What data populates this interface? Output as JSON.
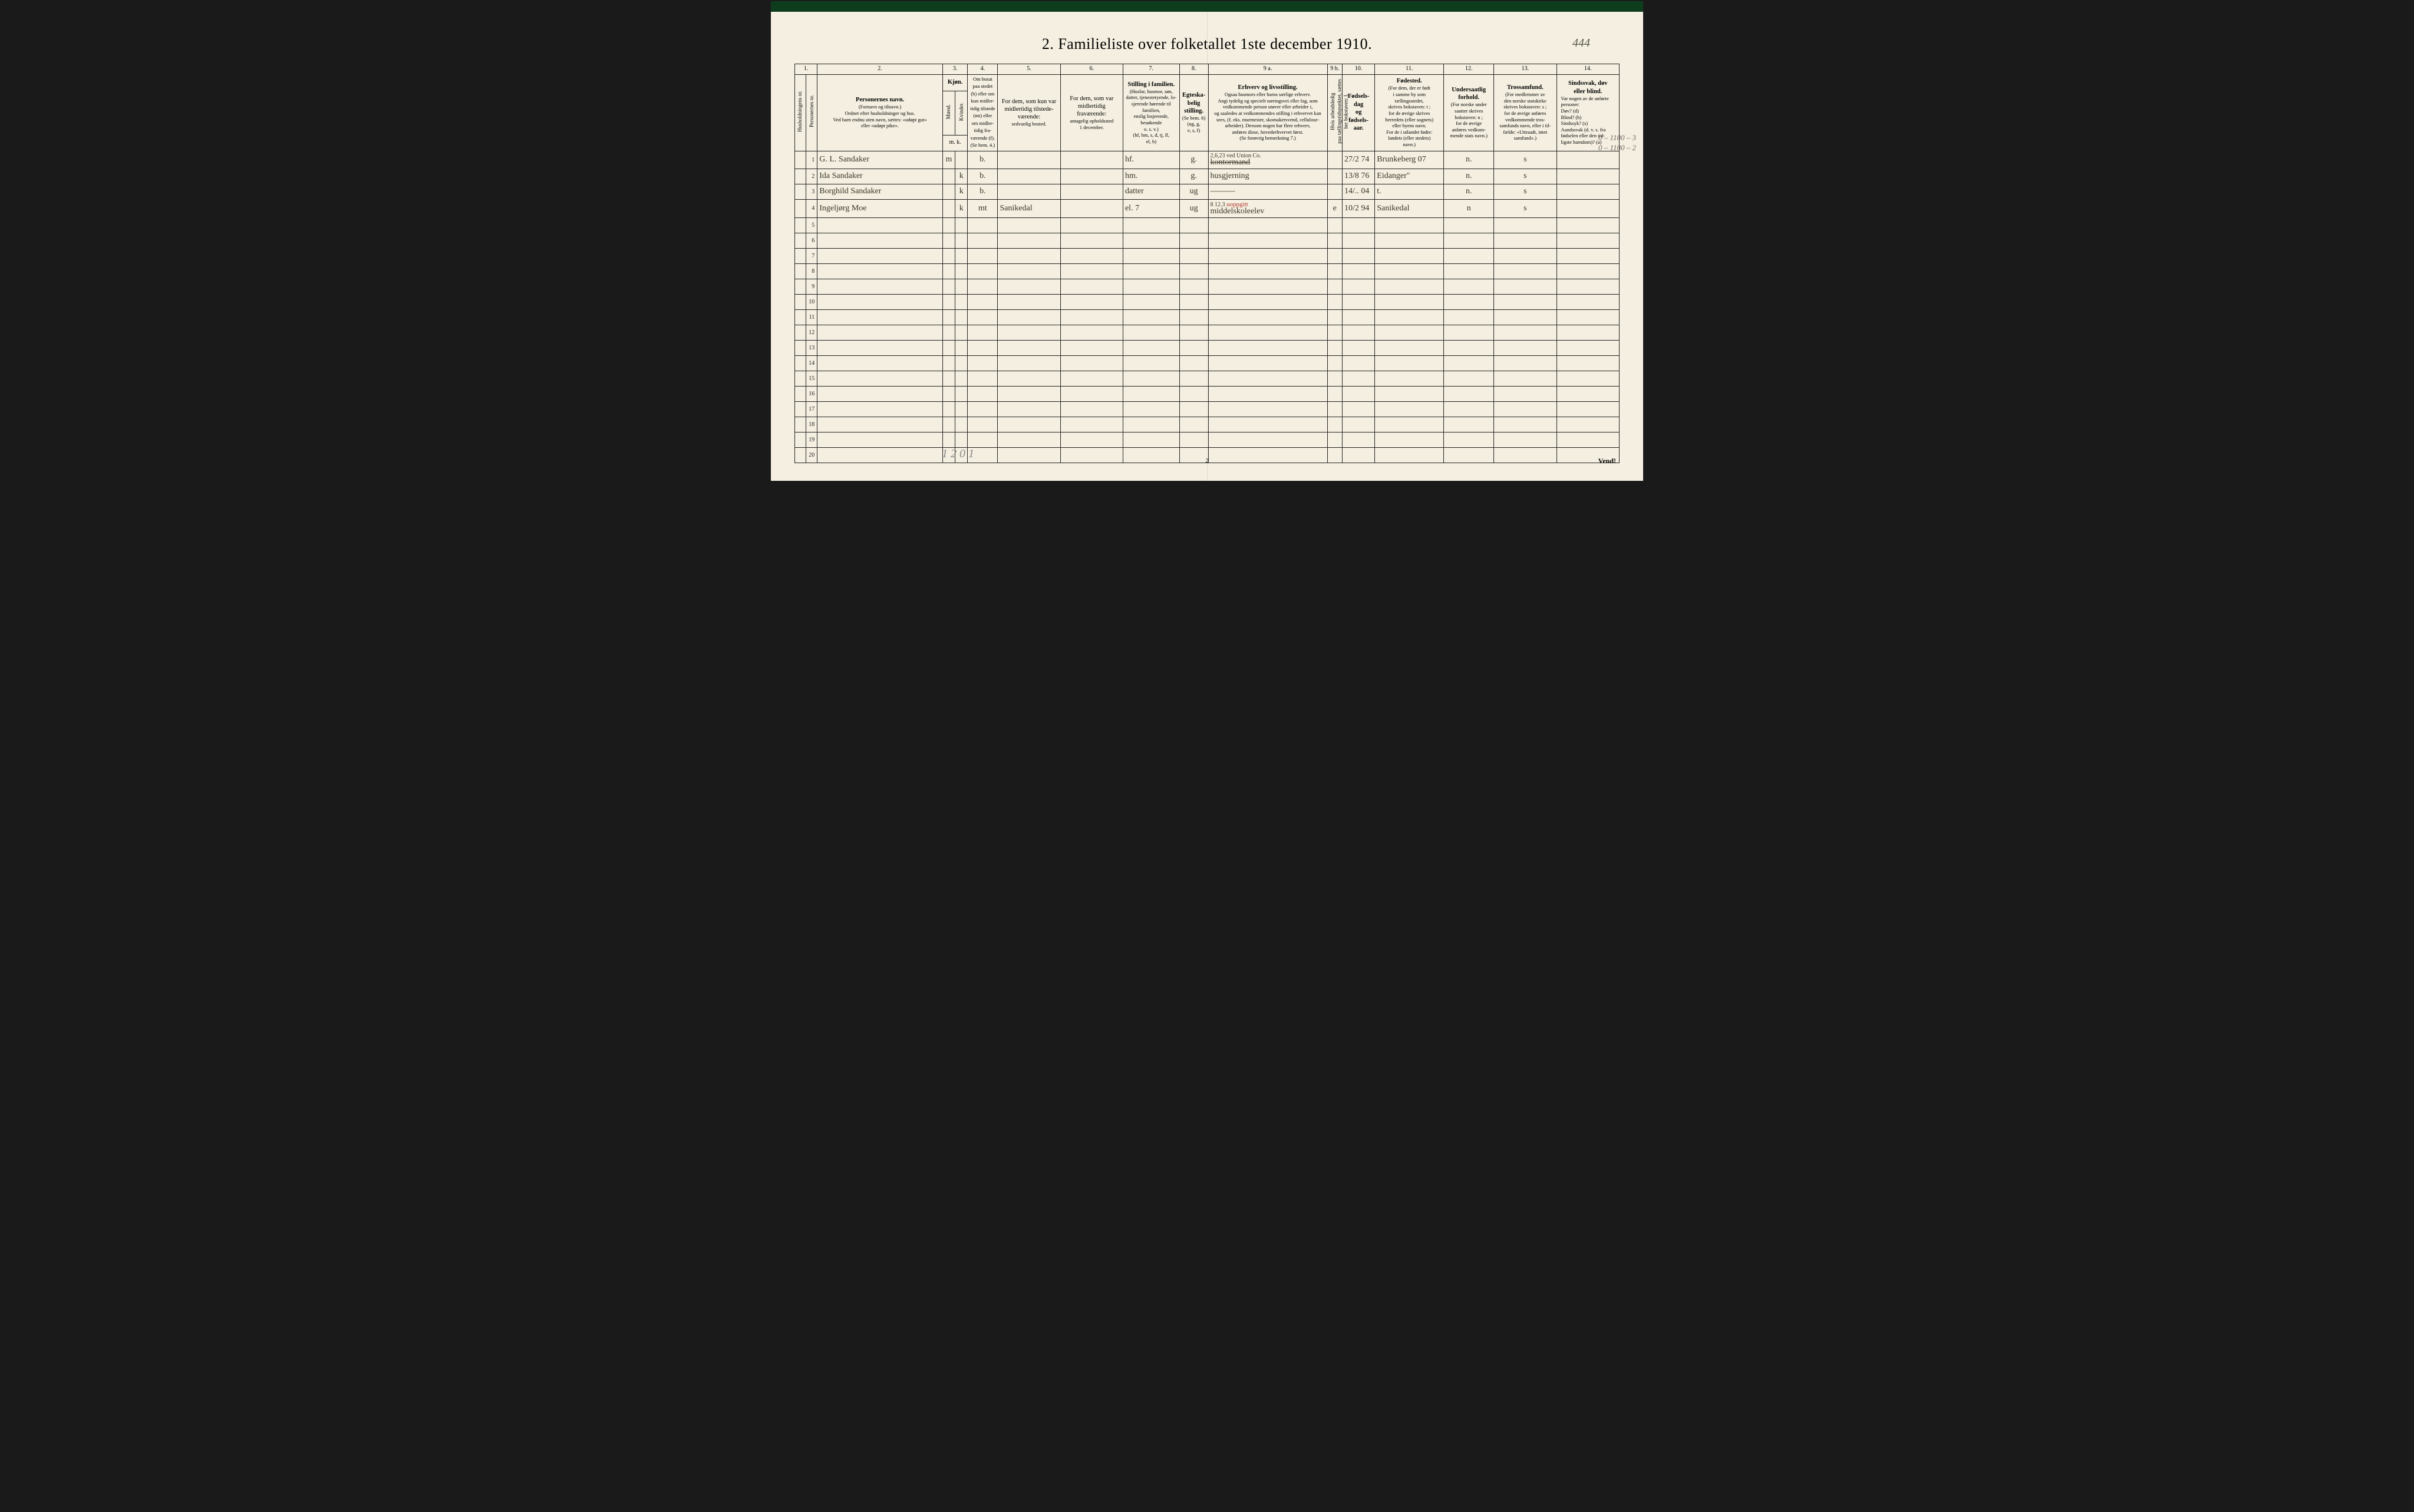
{
  "title": "2.  Familieliste over folketallet 1ste december 1910.",
  "topRightAnnotation": "444",
  "marginAnnotation": [
    "0 – 1100 – 3",
    "0 – 1100 – 2"
  ],
  "belowScribble": "1 2   0 1",
  "pageNumBottom": "2",
  "vend": "Vend!",
  "colNumbers": [
    "1.",
    "2.",
    "3.",
    "4.",
    "5.",
    "6.",
    "7.",
    "8.",
    "9 a.",
    "9 b.",
    "10.",
    "11.",
    "12.",
    "13.",
    "14."
  ],
  "headers": {
    "c1": "Husholdningens nr.",
    "c2": "Personernes nr.",
    "c3_main": "Personernes navn.",
    "c3_sub": "(Fornavn og tilnavn.)\nOrdnet efter husholdninger og hus.\nVed barn endnu uten navn, sættes: «udøpt gut»\neller «udøpt pike».",
    "c4_main": "Kjøn.",
    "c4a": "Mænd.",
    "c4b": "Kvinder.",
    "c4_mk": "m.  k.",
    "c5_main": "Om bosat\npaa stedet\n(b) eller om\nkun midler-\ntidig tilstede\n(mt) eller\nom midler-\ntidig fra-\nværende (f).\n(Se bem. 4.)",
    "c6_main": "For dem, som kun var\nmidlertidig tilstede-\nværende:",
    "c6_sub": "sedvanlig bosted.",
    "c7_main": "For dem, som var\nmidlertidig\nfraværende:",
    "c7_sub": "antagelig opholdssted\n1 december.",
    "c8_main": "Stilling i familien.",
    "c8_sub": "(Husfar, husmor, søn,\ndatter, tjenestetyende, lo-\nsjerende hørende til familien,\nenslig losjerende, besøkende\no. s. v.)\n(hf, hm, s, d, tj, fl,\nel, b)",
    "c9_main": "Egteska-\nbelig\nstilling.",
    "c9_sub": "(Se bem. 6)\n(ug, g,\ne, s, f)",
    "c10_main": "Erhverv og livsstilling.",
    "c10_sub": "Ogsaa husmors eller barns særlige erhverv.\nAngi tydelig og specielt næringsvei eller fag, som\nvedkommende person utøver eller arbeider i,\nog saaledes at vedkommendes stilling i erhvervet kan\nsees, (f. eks. murmester, skomakersvend, cellulose-\narbeider).  Dersom nogen har flere erhverv,\nanføres disse, hovederhvervet først.\n(Se forøvrig bemerkning 7.)",
    "c11": "Hvis arbeidsledig\npaa tællingstidspunktet, sættes\nher bokstaven:  l.",
    "c12_main": "Fødsels-\ndag\nog\nfødsels-\naar.",
    "c13_main": "Fødested.",
    "c13_sub": "(For dem, der er født\ni samme by som\ntællingsstedet,\nskrives bokstaven:  t ;\nfor de øvrige skrives\nherredets (eller sognets)\neller byens navn.\nFor de i utlandet fødte:\nlandets (eller stedets)\nnavn.)",
    "c14_main": "Undersaatlig\nforhold.",
    "c14_sub": "(For norske under\nsaatter skrives\nbokstaven:  n ;\nfor de øvrige\nanføres vedkom-\nmende stats navn.)",
    "c15_main": "Trossamfund.",
    "c15_sub": "(For medlemmer av\nden norske statskirke\nskrives bokstaven:  s ;\nfor de øvrige anføres\nvedkommende tros-\nsamfunds navn, eller i til-\nfælde:  «Uttraadt, intet\nsamfund».)",
    "c16_main": "Sindssvak, døv\neller blind.",
    "c16_sub": "Var nogen av de anførte\npersoner:\nDøv?        (d)\nBlind?      (b)\nSindssyk?  (s)\nAandssvak (d. v. s. fra\nfødselen eller den tid-\nligste barndom)?  (a)"
  },
  "rows": [
    {
      "n": "1",
      "name": "G. L. Sandaker",
      "sex": "m",
      "res": "b.",
      "usual": "",
      "away": "",
      "pos": "hf.",
      "mar": "g.",
      "occ": "kontormand",
      "occ_over": "2,6,23 ved Union Co.",
      "led": "",
      "birth": "27/2 74",
      "place": "Brunkeberg 07",
      "nat": "n.",
      "faith": "s",
      "mad": ""
    },
    {
      "n": "2",
      "name": "Ida Sandaker",
      "sex": "k",
      "res": "b.",
      "usual": "",
      "away": "",
      "pos": "hm.",
      "mar": "g.",
      "occ": "husgjerning",
      "occ_over": "",
      "led": "",
      "birth": "13/8 76",
      "place": "Eidanger\"",
      "nat": "n.",
      "faith": "s",
      "mad": ""
    },
    {
      "n": "3",
      "name": "Borghild Sandaker",
      "sex": "k",
      "res": "b.",
      "usual": "",
      "away": "",
      "pos": "datter",
      "mar": "ug",
      "occ": "———",
      "occ_over": "",
      "led": "",
      "birth": "14/.. 04",
      "place": "t.",
      "nat": "n.",
      "faith": "s",
      "mad": ""
    },
    {
      "n": "4",
      "name": "Ingeljørg Moe",
      "sex": "k",
      "res": "mt",
      "usual": "Sanikedal",
      "away": "",
      "pos": "el.      7",
      "mar": "ug",
      "occ": "middelskoleelev",
      "occ_over": "8 12.3 uoppgitt",
      "led": "e",
      "birth": "10/2 94",
      "place": "Sanikedal",
      "nat": "n",
      "faith": "s",
      "mad": ""
    }
  ],
  "rowCount": 20
}
